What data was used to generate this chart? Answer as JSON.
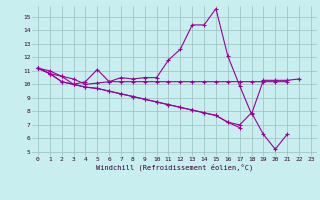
{
  "xlabel": "Windchill (Refroidissement éolien,°C)",
  "bg_color": "#c8eef0",
  "grid_color": "#9bbfbf",
  "line_color": "#990099",
  "xlim": [
    -0.5,
    23.5
  ],
  "ylim": [
    4.7,
    15.8
  ],
  "xticks": [
    0,
    1,
    2,
    3,
    4,
    5,
    6,
    7,
    8,
    9,
    10,
    11,
    12,
    13,
    14,
    15,
    16,
    17,
    18,
    19,
    20,
    21,
    22,
    23
  ],
  "yticks": [
    5,
    6,
    7,
    8,
    9,
    10,
    11,
    12,
    13,
    14,
    15
  ],
  "series": [
    [
      11.2,
      11.0,
      10.6,
      10.0,
      10.2,
      11.1,
      10.2,
      10.5,
      10.4,
      10.5,
      10.5,
      11.8,
      12.6,
      14.4,
      14.4,
      15.6,
      12.1,
      9.9,
      7.8,
      10.3,
      10.3,
      10.3,
      10.4,
      null
    ],
    [
      11.2,
      10.8,
      10.6,
      10.4,
      10.0,
      10.1,
      10.2,
      10.2,
      10.2,
      10.2,
      10.2,
      10.2,
      10.2,
      10.2,
      10.2,
      10.2,
      10.2,
      10.2,
      10.2,
      10.2,
      10.2,
      10.2,
      null,
      null
    ],
    [
      11.2,
      10.8,
      10.2,
      10.0,
      9.8,
      9.7,
      9.5,
      9.3,
      9.1,
      8.9,
      8.7,
      8.5,
      8.3,
      8.1,
      7.9,
      7.7,
      7.2,
      6.8,
      null,
      null,
      null,
      null,
      null,
      null
    ],
    [
      11.2,
      10.8,
      10.2,
      10.0,
      9.8,
      9.7,
      9.5,
      9.3,
      9.1,
      8.9,
      8.7,
      8.5,
      8.3,
      8.1,
      7.9,
      7.7,
      7.2,
      7.0,
      7.9,
      6.3,
      5.2,
      6.3,
      null,
      null
    ]
  ]
}
